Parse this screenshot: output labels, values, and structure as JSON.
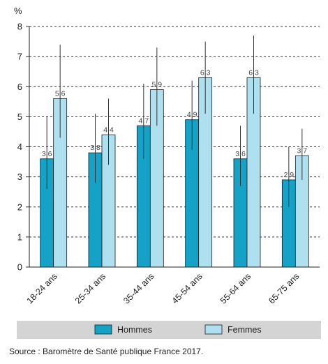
{
  "chart_data": {
    "type": "bar",
    "unit": "%",
    "categories": [
      "18-24 ans",
      "25-34 ans",
      "35-44 ans",
      "45-54 ans",
      "55-64 ans",
      "65-75 ans"
    ],
    "series": [
      {
        "name": "Hommes",
        "color": "#14a3c7",
        "values": [
          3.6,
          3.8,
          4.7,
          4.9,
          3.6,
          2.9
        ],
        "ci_low": [
          2.6,
          2.8,
          3.6,
          3.9,
          2.7,
          2.0
        ],
        "ci_high": [
          5.0,
          5.1,
          6.1,
          6.2,
          4.7,
          4.0
        ]
      },
      {
        "name": "Femmes",
        "color": "#aee0ef",
        "values": [
          5.6,
          4.4,
          5.9,
          6.3,
          6.3,
          3.7
        ],
        "ci_low": [
          4.3,
          3.4,
          4.7,
          5.1,
          5.1,
          2.9
        ],
        "ci_high": [
          7.4,
          5.6,
          7.3,
          7.5,
          7.7,
          4.6
        ]
      }
    ],
    "ylim": [
      0,
      8
    ],
    "yticks": [
      0,
      1,
      2,
      3,
      4,
      5,
      6,
      7,
      8
    ],
    "grid": true,
    "legend_position": "bottom",
    "source": "Source : Baromètre de Santé publique France 2017."
  }
}
